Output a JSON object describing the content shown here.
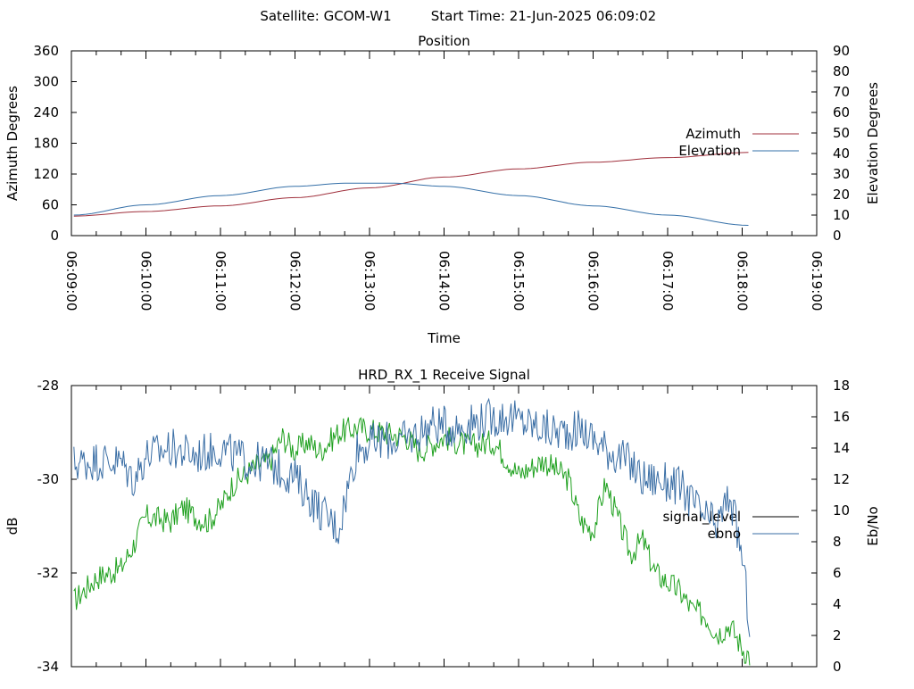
{
  "header": {
    "satellite_text": "Satellite: GCOM-W1",
    "start_time_text": "Start Time: 21-Jun-2025 06:09:02"
  },
  "chart_data": [
    {
      "type": "line",
      "title": "Position",
      "xlabel": "Time",
      "ylabel": "Azimuth Degrees",
      "y2label": "Elevation Degrees",
      "x_ticks": [
        "06:09:00",
        "06:10:00",
        "06:11:00",
        "06:12:00",
        "06:13:00",
        "06:14:00",
        "06:15:00",
        "06:16:00",
        "06:17:00",
        "06:18:00",
        "06:19:00"
      ],
      "xlim_seconds": [
        0,
        600
      ],
      "ylim": [
        0,
        360
      ],
      "y_ticks": [
        0,
        60,
        120,
        180,
        240,
        300,
        360
      ],
      "y2lim": [
        0,
        90
      ],
      "y2_ticks": [
        0,
        10,
        20,
        30,
        40,
        50,
        60,
        70,
        80,
        90
      ],
      "legend_position": "right",
      "series": [
        {
          "name": "Azimuth",
          "axis": "y",
          "color": "#a0303c",
          "x": [
            2,
            60,
            120,
            180,
            240,
            300,
            360,
            420,
            480,
            545
          ],
          "values": [
            38,
            47,
            58,
            74,
            93,
            114,
            130,
            143,
            152,
            162
          ]
        },
        {
          "name": "Elevation",
          "axis": "y2",
          "color": "#3570a8",
          "x": [
            2,
            60,
            120,
            180,
            220,
            260,
            300,
            360,
            420,
            480,
            545
          ],
          "values": [
            10,
            15,
            19.5,
            24,
            25.5,
            25.5,
            24,
            19.5,
            14.5,
            10,
            5
          ]
        }
      ]
    },
    {
      "type": "line",
      "title": "HRD_RX_1 Receive Signal",
      "ylabel": "dB",
      "y2label": "Eb/No",
      "xlim_seconds": [
        0,
        600
      ],
      "ylim": [
        -34,
        -28
      ],
      "y_ticks": [
        -34,
        -32,
        -30,
        -28
      ],
      "y2lim": [
        0,
        18
      ],
      "y2_ticks": [
        0,
        2,
        4,
        6,
        8,
        10,
        12,
        14,
        16,
        18
      ],
      "legend_position": "right",
      "series": [
        {
          "name": "signal_level",
          "axis": "y",
          "color": "#1ea01e",
          "x": [
            2,
            20,
            40,
            50,
            60,
            80,
            90,
            100,
            110,
            120,
            130,
            150,
            160,
            170,
            180,
            190,
            200,
            215,
            230,
            250,
            270,
            280,
            300,
            320,
            340,
            360,
            380,
            400,
            410,
            420,
            430,
            450,
            460,
            470,
            490,
            500,
            510,
            520,
            530,
            540,
            547
          ],
          "values": [
            -32.6,
            -32.1,
            -31.9,
            -31.4,
            -30.8,
            -30.9,
            -30.6,
            -30.8,
            -30.9,
            -30.6,
            -30.1,
            -29.7,
            -29.6,
            -29.1,
            -29.4,
            -29.2,
            -29.4,
            -29.0,
            -28.9,
            -29.0,
            -29.1,
            -29.4,
            -29.1,
            -29.3,
            -29.2,
            -29.9,
            -29.6,
            -30.0,
            -30.9,
            -31.1,
            -30.1,
            -31.6,
            -31.3,
            -32.0,
            -32.4,
            -32.8,
            -32.9,
            -33.3,
            -33.1,
            -33.6,
            -33.8
          ]
        },
        {
          "name": "ebno",
          "axis": "y2",
          "color": "#3a6ea5",
          "x": [
            2,
            20,
            40,
            50,
            60,
            80,
            100,
            120,
            140,
            160,
            170,
            180,
            200,
            215,
            230,
            250,
            270,
            290,
            310,
            330,
            350,
            370,
            390,
            410,
            430,
            450,
            460,
            470,
            490,
            500,
            510,
            520,
            530,
            540,
            547
          ],
          "values": [
            13.0,
            13.2,
            13.1,
            12.0,
            13.5,
            14.0,
            13.5,
            14.0,
            13.2,
            13.0,
            12.5,
            12.1,
            10.0,
            8.8,
            14.0,
            14.5,
            14.5,
            15.5,
            15.3,
            15.8,
            16.0,
            15.5,
            15.0,
            15.2,
            14.0,
            13.0,
            12.0,
            12.0,
            11.5,
            10.5,
            9.5,
            9.0,
            11.0,
            7.0,
            2.0
          ]
        }
      ]
    }
  ]
}
